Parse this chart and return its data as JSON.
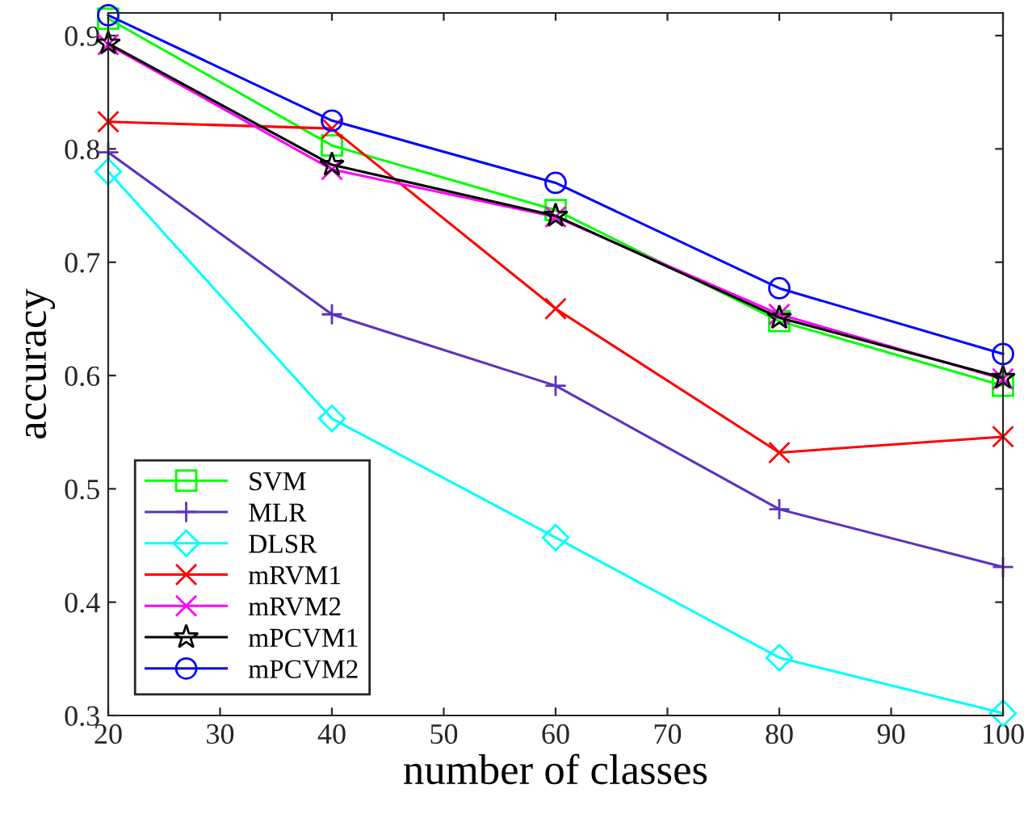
{
  "chart_data": {
    "type": "line",
    "xlabel": "number of classes",
    "ylabel": "accuracy",
    "x": [
      20,
      40,
      60,
      80,
      100
    ],
    "series": [
      {
        "name": "SVM",
        "color": "#00ff00",
        "marker": "square",
        "values": [
          0.915,
          0.803,
          0.746,
          0.648,
          0.591
        ]
      },
      {
        "name": "MLR",
        "color": "#5a32c0",
        "marker": "plus",
        "values": [
          0.797,
          0.654,
          0.591,
          0.482,
          0.431
        ]
      },
      {
        "name": "DLSR",
        "color": "#00ffff",
        "marker": "diamond",
        "values": [
          0.78,
          0.562,
          0.457,
          0.351,
          0.302
        ]
      },
      {
        "name": "mRVM1",
        "color": "#ff0000",
        "marker": "cross",
        "values": [
          0.824,
          0.818,
          0.659,
          0.532,
          0.546
        ]
      },
      {
        "name": "mRVM2",
        "color": "#ff00ff",
        "marker": "cross",
        "values": [
          0.892,
          0.782,
          0.74,
          0.654,
          0.597
        ]
      },
      {
        "name": "mPCVM1",
        "color": "#000000",
        "marker": "star",
        "values": [
          0.893,
          0.786,
          0.741,
          0.651,
          0.598
        ]
      },
      {
        "name": "mPCVM2",
        "color": "#0000ff",
        "marker": "circle",
        "values": [
          0.918,
          0.825,
          0.77,
          0.677,
          0.619
        ]
      }
    ],
    "xlim": [
      20,
      100
    ],
    "xticks": [
      20,
      30,
      40,
      50,
      60,
      70,
      80,
      90,
      100
    ],
    "ylim": [
      0.3,
      0.92
    ],
    "yticks": [
      {
        "value": 0.3,
        "label": "0.3"
      },
      {
        "value": 0.4,
        "label": "0.4"
      },
      {
        "value": 0.5,
        "label": "0.5"
      },
      {
        "value": 0.6,
        "label": "0.6"
      },
      {
        "value": 0.7,
        "label": "0.7"
      },
      {
        "value": 0.8,
        "label": "0.8"
      },
      {
        "value": 0.9,
        "label": "0.9"
      }
    ],
    "grid": false,
    "legend": "bottom left",
    "line_style": "solid"
  }
}
